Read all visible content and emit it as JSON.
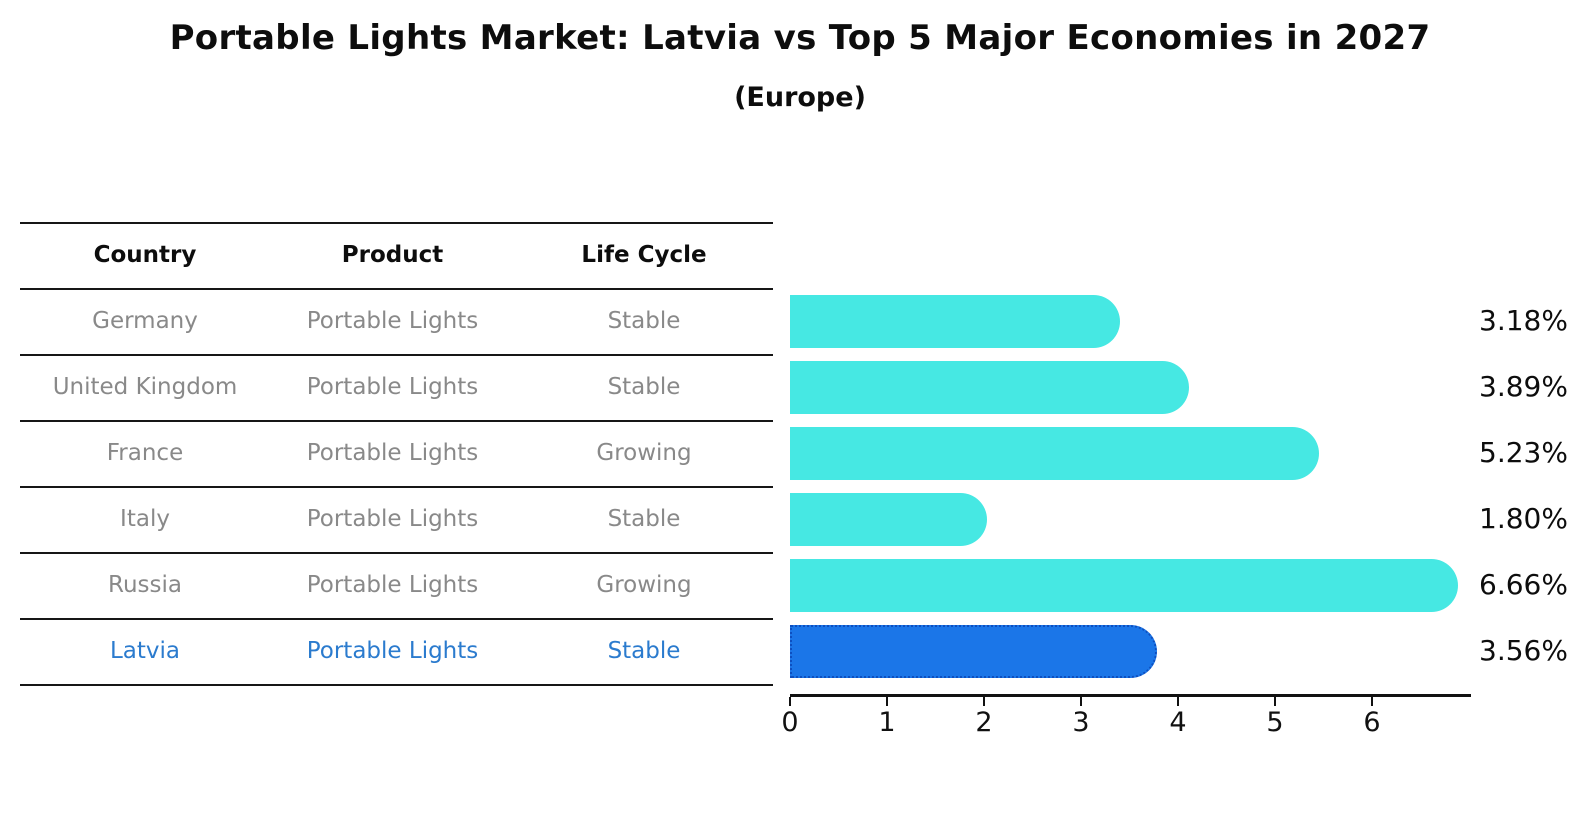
{
  "header": {
    "title": "Portable Lights Market: Latvia vs Top 5 Major Economies in 2027",
    "subtitle": "(Europe)"
  },
  "table": {
    "headers": [
      "Country",
      "Product",
      "Life Cycle"
    ],
    "rows": [
      {
        "country": "Germany",
        "product": "Portable Lights",
        "life_cycle": "Stable",
        "highlight": false
      },
      {
        "country": "United Kingdom",
        "product": "Portable Lights",
        "life_cycle": "Stable",
        "highlight": false
      },
      {
        "country": "France",
        "product": "Portable Lights",
        "life_cycle": "Growing",
        "highlight": false
      },
      {
        "country": "Italy",
        "product": "Portable Lights",
        "life_cycle": "Stable",
        "highlight": false
      },
      {
        "country": "Russia",
        "product": "Portable Lights",
        "life_cycle": "Growing",
        "highlight": false
      },
      {
        "country": "Latvia",
        "product": "Portable Lights",
        "life_cycle": "Stable",
        "highlight": true
      }
    ]
  },
  "chart_data": {
    "type": "bar",
    "orientation": "horizontal",
    "title": "Portable Lights Market: Latvia vs Top 5 Major Economies in 2027",
    "subtitle": "(Europe)",
    "categories": [
      "Germany",
      "United Kingdom",
      "France",
      "Italy",
      "Russia",
      "Latvia"
    ],
    "values": [
      3.18,
      3.89,
      5.23,
      1.8,
      6.66,
      3.56
    ],
    "value_labels": [
      "3.18%",
      "3.89%",
      "5.23%",
      "1.80%",
      "6.66%",
      "3.56%"
    ],
    "xlabel": "",
    "ylabel": "",
    "xlim": [
      0,
      7
    ],
    "xticks": [
      "0",
      "1",
      "2",
      "3",
      "4",
      "5",
      "6"
    ],
    "grid": false,
    "legend": null,
    "colors": {
      "bar": "#46e8e3",
      "highlight_fill": "#1b76e8",
      "highlight_border": "#0d4fc0",
      "row_text": "#898989",
      "highlight_text": "#2b7bce",
      "axis": "#111111",
      "value_text": "#0d0d0d"
    },
    "highlight_index": 5
  }
}
